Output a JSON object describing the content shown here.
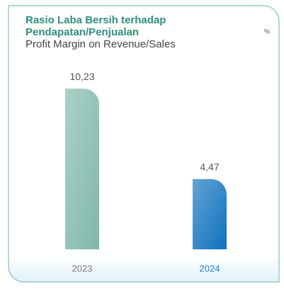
{
  "chart_data": {
    "type": "bar",
    "title": "Rasio Laba Bersih terhadap Pendapatan/Penjualan",
    "subtitle": "Profit Margin on Revenue/Sales",
    "unit": "%",
    "categories": [
      "2023",
      "2024"
    ],
    "values": [
      10.23,
      4.47
    ],
    "value_labels": [
      "10,23",
      "4,47"
    ],
    "colors": [
      "#7fb8a9",
      "#0f72bd"
    ],
    "category_label_colors": [
      "#7a7a7a",
      "#1a80c8"
    ],
    "ylim": [
      0,
      11.5
    ]
  }
}
